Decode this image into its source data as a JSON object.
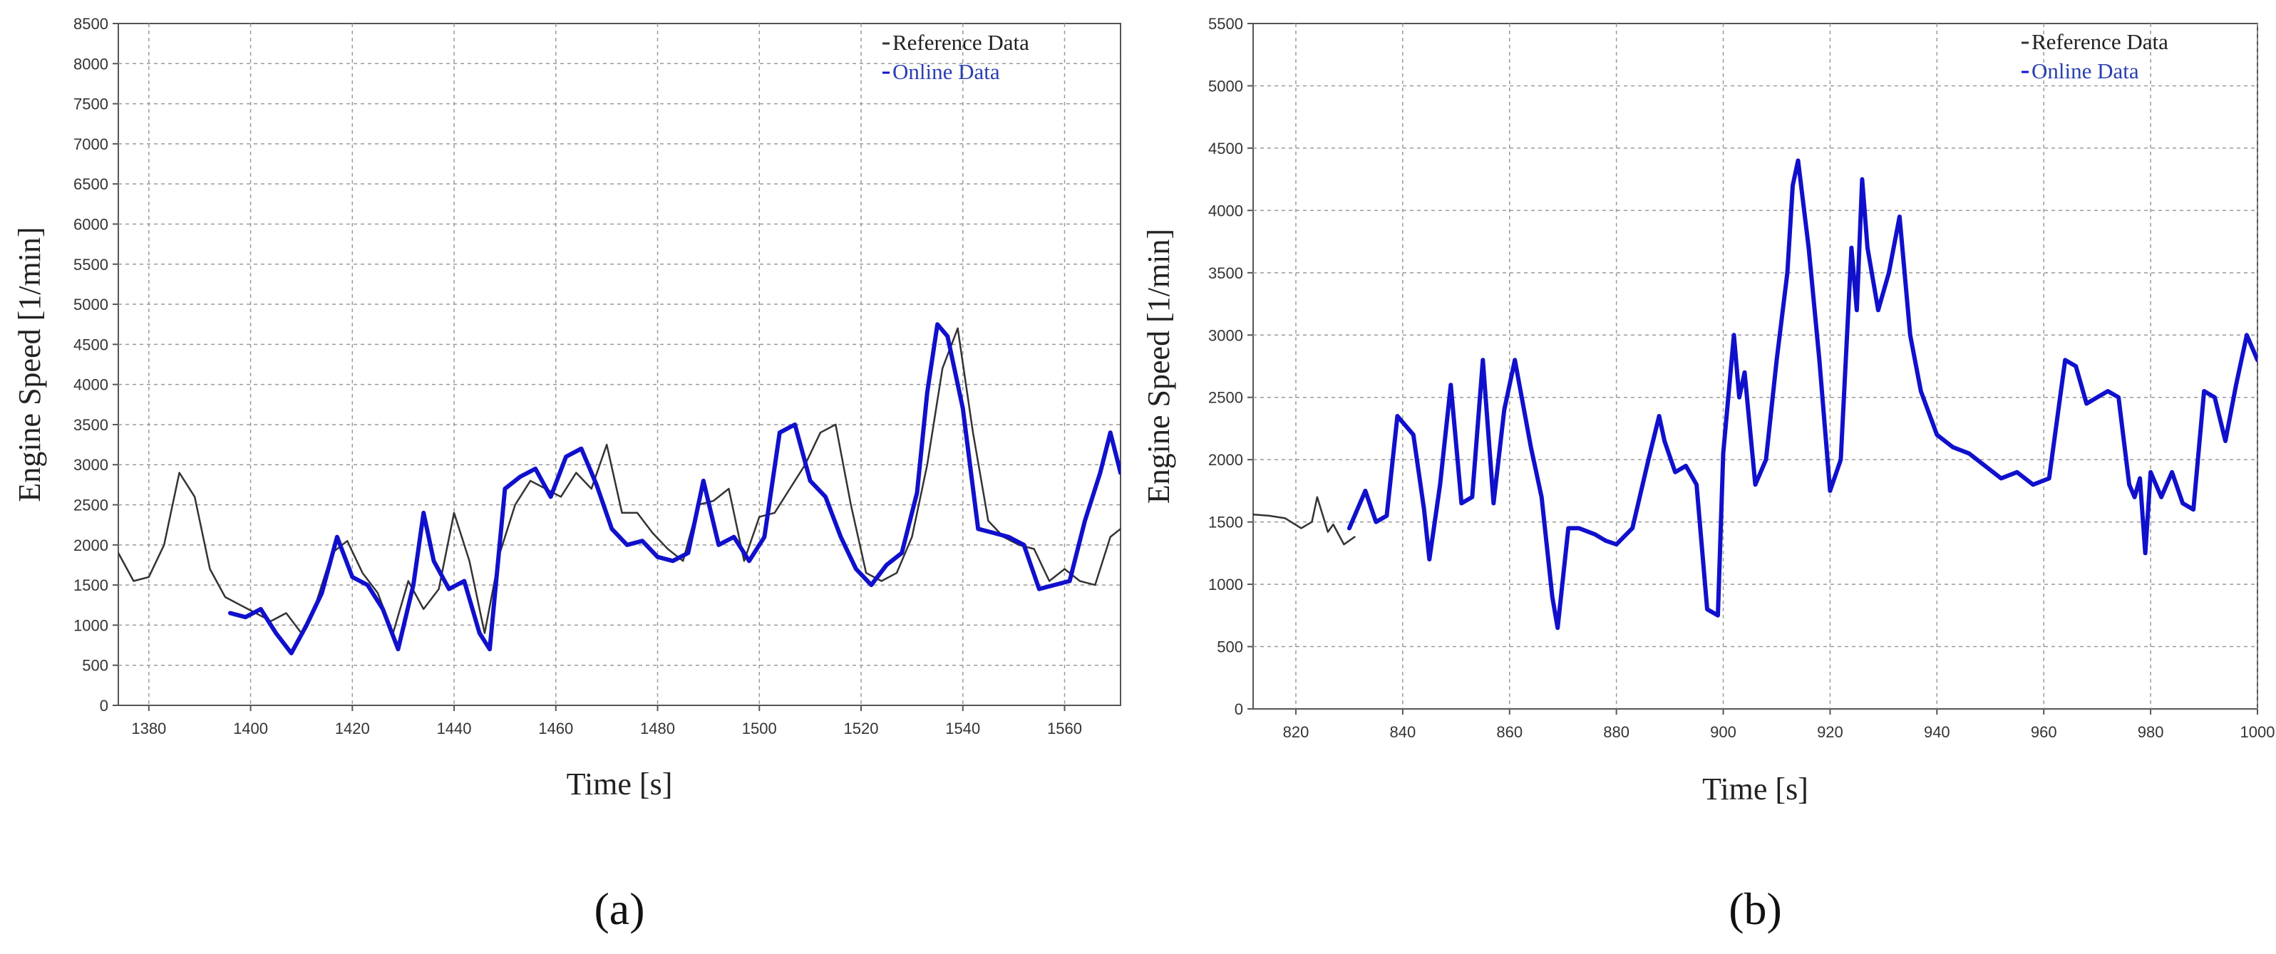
{
  "chart_data": [
    {
      "type": "line",
      "panel_label": "(a)",
      "xlabel": "Time [s]",
      "ylabel": "Engine Speed [1/min]",
      "xlim": [
        1374,
        1571
      ],
      "ylim": [
        0,
        8500
      ],
      "grid": true,
      "legend_position": "top-right",
      "x_ticks": [
        1380,
        1400,
        1420,
        1440,
        1460,
        1480,
        1500,
        1520,
        1540,
        1560
      ],
      "y_ticks": [
        0,
        500,
        1000,
        1500,
        2000,
        2500,
        3000,
        3500,
        4000,
        4500,
        5000,
        5500,
        6000,
        6500,
        7000,
        7500,
        8000,
        8500
      ],
      "series": [
        {
          "name": "Reference Data",
          "color": "#333333",
          "x": [
            1374,
            1377,
            1380,
            1383,
            1386,
            1389,
            1392,
            1395,
            1398,
            1401,
            1404,
            1407,
            1410,
            1413,
            1416,
            1419,
            1422,
            1425,
            1428,
            1431,
            1434,
            1437,
            1440,
            1443,
            1446,
            1449,
            1452,
            1455,
            1458,
            1461,
            1464,
            1467,
            1470,
            1473,
            1476,
            1479,
            1482,
            1485,
            1488,
            1491,
            1494,
            1497,
            1500,
            1503,
            1506,
            1509,
            1512,
            1515,
            1518,
            1521,
            1524,
            1527,
            1530,
            1533,
            1536,
            1539,
            1542,
            1545,
            1548,
            1551,
            1554,
            1557,
            1560,
            1563,
            1566,
            1569,
            1571
          ],
          "y": [
            1900,
            1550,
            1600,
            2000,
            2900,
            2600,
            1700,
            1350,
            1250,
            1150,
            1050,
            1150,
            900,
            1300,
            1900,
            2050,
            1650,
            1400,
            900,
            1550,
            1200,
            1450,
            2400,
            1800,
            900,
            1900,
            2500,
            2800,
            2700,
            2600,
            2900,
            2700,
            3250,
            2400,
            2400,
            2150,
            1950,
            1800,
            2500,
            2550,
            2700,
            1800,
            2350,
            2400,
            2700,
            3000,
            3400,
            3500,
            2500,
            1650,
            1550,
            1650,
            2100,
            3000,
            4200,
            4700,
            3400,
            2300,
            2100,
            2000,
            1950,
            1550,
            1700,
            1550,
            1500,
            2100,
            2200
          ]
        },
        {
          "name": "Online Data",
          "color": "#1010cc",
          "x": [
            1396,
            1399,
            1402,
            1405,
            1408,
            1411,
            1414,
            1417,
            1420,
            1423,
            1426,
            1429,
            1432,
            1434,
            1436,
            1439,
            1442,
            1445,
            1447,
            1450,
            1453,
            1456,
            1459,
            1462,
            1465,
            1468,
            1471,
            1474,
            1477,
            1480,
            1483,
            1486,
            1489,
            1492,
            1495,
            1498,
            1501,
            1504,
            1507,
            1510,
            1513,
            1516,
            1519,
            1522,
            1525,
            1528,
            1531,
            1533,
            1535,
            1537,
            1540,
            1543,
            1546,
            1549,
            1552,
            1555,
            1558,
            1561,
            1564,
            1567,
            1569,
            1571
          ],
          "y": [
            1150,
            1100,
            1200,
            900,
            650,
            1000,
            1400,
            2100,
            1600,
            1500,
            1200,
            700,
            1500,
            2400,
            1800,
            1450,
            1550,
            900,
            700,
            2700,
            2850,
            2950,
            2600,
            3100,
            3200,
            2750,
            2200,
            2000,
            2050,
            1850,
            1800,
            1900,
            2800,
            2000,
            2100,
            1800,
            2100,
            3400,
            3500,
            2800,
            2600,
            2100,
            1700,
            1500,
            1750,
            1900,
            2650,
            3900,
            4750,
            4600,
            3700,
            2200,
            2150,
            2100,
            2000,
            1450,
            1500,
            1550,
            2300,
            2900,
            3400,
            2900
          ]
        }
      ]
    },
    {
      "type": "line",
      "panel_label": "(b)",
      "xlabel": "Time [s]",
      "ylabel": "Engine Speed [1/min]",
      "xlim": [
        812,
        1000
      ],
      "ylim": [
        0,
        5500
      ],
      "grid": true,
      "legend_position": "top-right",
      "x_ticks": [
        820,
        840,
        860,
        880,
        900,
        920,
        940,
        960,
        980,
        1000
      ],
      "y_ticks": [
        0,
        500,
        1000,
        1500,
        2000,
        2500,
        3000,
        3500,
        4000,
        4500,
        5000,
        5500
      ],
      "series": [
        {
          "name": "Reference Data",
          "color": "#333333",
          "x": [
            812,
            815,
            818,
            821,
            823,
            824,
            826,
            827,
            829,
            831
          ],
          "y": [
            1560,
            1550,
            1530,
            1450,
            1500,
            1700,
            1420,
            1480,
            1320,
            1380
          ]
        },
        {
          "name": "Online Data",
          "color": "#1010cc",
          "x": [
            830,
            833,
            835,
            837,
            839,
            842,
            844,
            845,
            847,
            849,
            851,
            853,
            855,
            857,
            859,
            861,
            864,
            866,
            868,
            869,
            871,
            873,
            876,
            878,
            880,
            883,
            886,
            888,
            889,
            891,
            893,
            895,
            897,
            899,
            900,
            902,
            903,
            904,
            906,
            908,
            910,
            912,
            913,
            914,
            916,
            918,
            920,
            922,
            924,
            925,
            926,
            927,
            929,
            931,
            933,
            935,
            937,
            940,
            943,
            946,
            949,
            952,
            955,
            958,
            961,
            964,
            966,
            968,
            970,
            972,
            974,
            976,
            977,
            978,
            979,
            980,
            982,
            984,
            986,
            988,
            990,
            992,
            994,
            996,
            998,
            1000
          ],
          "y": [
            1450,
            1750,
            1500,
            1550,
            2350,
            2200,
            1600,
            1200,
            1800,
            2600,
            1650,
            1700,
            2800,
            1650,
            2400,
            2800,
            2100,
            1700,
            900,
            650,
            1450,
            1450,
            1400,
            1350,
            1320,
            1450,
            2000,
            2350,
            2150,
            1900,
            1950,
            1800,
            800,
            750,
            2050,
            3000,
            2500,
            2700,
            1800,
            2000,
            2800,
            3500,
            4200,
            4400,
            3700,
            2800,
            1750,
            2000,
            3700,
            3200,
            4250,
            3700,
            3200,
            3500,
            3950,
            3000,
            2550,
            2200,
            2100,
            2050,
            1950,
            1850,
            1900,
            1800,
            1850,
            2800,
            2750,
            2450,
            2500,
            2550,
            2500,
            1800,
            1700,
            1850,
            1250,
            1900,
            1700,
            1900,
            1650,
            1600,
            2550,
            2500,
            2150,
            2600,
            3000,
            2800
          ]
        }
      ]
    }
  ]
}
